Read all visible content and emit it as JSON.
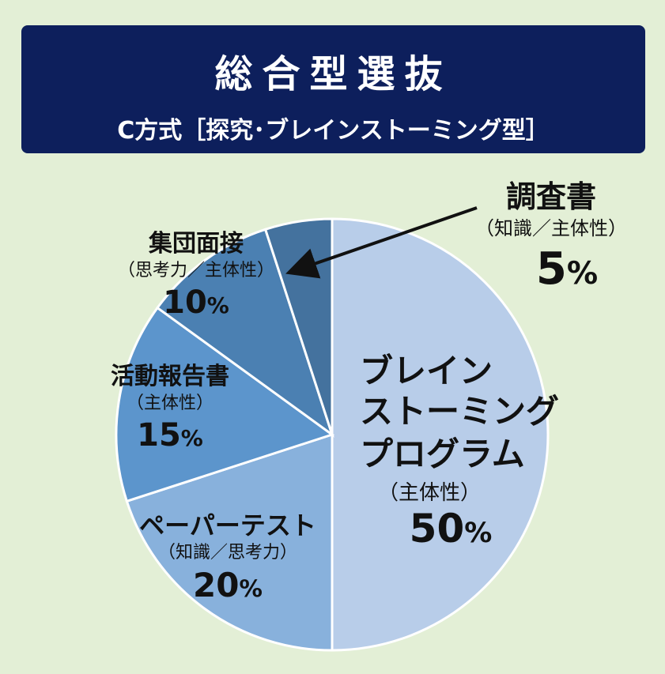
{
  "header": {
    "title": "総合型選抜",
    "subtitle": "C方式［探究･ブレインストーミング型］"
  },
  "colors": {
    "header_bg": "#0d1f5c",
    "background": "#e3efd6",
    "slices": [
      "#b8cde9",
      "#88b1dc",
      "#5c95cc",
      "#4b80b2",
      "#44729e"
    ]
  },
  "chart_data": {
    "type": "pie",
    "slices": [
      {
        "label": "ブレイン ストーミング プログラム",
        "sublabel": "（主体性）",
        "value": 50
      },
      {
        "label": "ペーパーテスト",
        "sublabel": "（知識／思考力）",
        "value": 20
      },
      {
        "label": "活動報告書",
        "sublabel": "（主体性）",
        "value": 15
      },
      {
        "label": "集団面接",
        "sublabel": "（思考力／主体性）",
        "value": 10
      },
      {
        "label": "調査書",
        "sublabel": "（知識／主体性）",
        "value": 5
      }
    ],
    "unit": "%",
    "start": "12 o'clock",
    "direction": "clockwise"
  },
  "labels": {
    "brainstorm": {
      "line1": "ブレイン",
      "line2": "ストーミング",
      "line3": "プログラム",
      "sub": "（主体性）",
      "pct": "50"
    },
    "paper": {
      "name": "ペーパーテスト",
      "sub": "（知識／思考力）",
      "pct": "20"
    },
    "report": {
      "name": "活動報告書",
      "sub": "（主体性）",
      "pct": "15"
    },
    "interview": {
      "name": "集団面接",
      "sub": "（思考力／主体性）",
      "pct": "10"
    },
    "survey": {
      "name": "調査書",
      "sub": "（知識／主体性）",
      "pct": "5"
    },
    "percent_sign": "%"
  }
}
